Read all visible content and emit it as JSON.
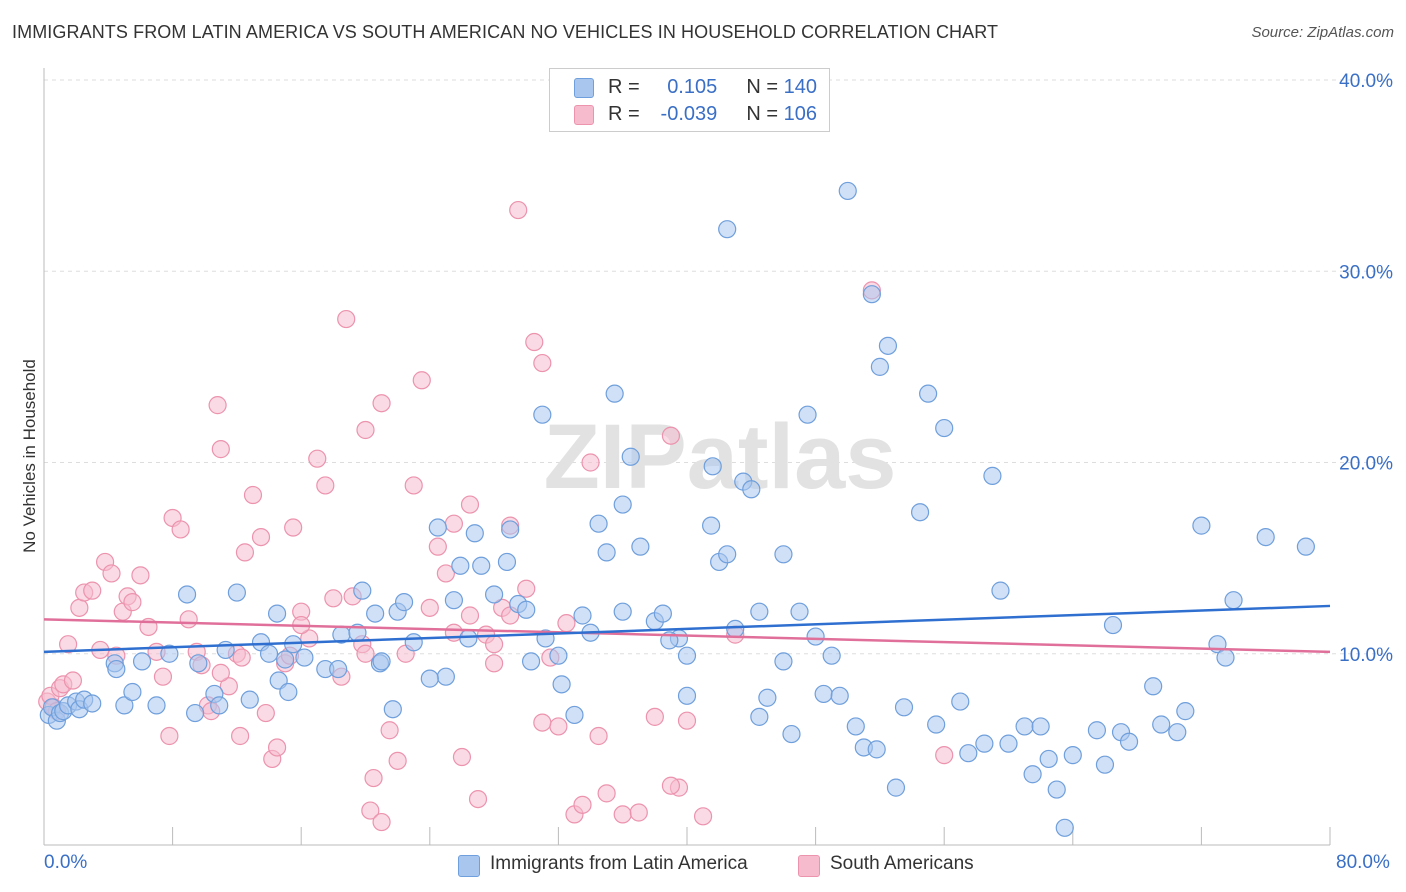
{
  "title": "IMMIGRANTS FROM LATIN AMERICA VS SOUTH AMERICAN NO VEHICLES IN HOUSEHOLD CORRELATION CHART",
  "source": "Source: ZipAtlas.com",
  "watermark": "ZIPatlas",
  "legend_top": {
    "series1": {
      "r_label": "R =",
      "r_value": "0.105",
      "n_label": "N =",
      "n_value": "140"
    },
    "series2": {
      "r_label": "R =",
      "r_value": "-0.039",
      "n_label": "N =",
      "n_value": "106"
    }
  },
  "legend_bottom": {
    "series1": "Immigrants from Latin America",
    "series2": "South Americans"
  },
  "colors": {
    "blue_fill": "#a9c6ee",
    "blue_stroke": "#6f9fdc",
    "blue_line": "#2f6fd0",
    "pink_fill": "#f6bccd",
    "pink_stroke": "#ec93ae",
    "pink_line": "#e0709a",
    "axis_label": "#3a6fc6",
    "grid": "#dddddd"
  },
  "chart_data": {
    "type": "scatter",
    "title": "IMMIGRANTS FROM LATIN AMERICA VS SOUTH AMERICAN NO VEHICLES IN HOUSEHOLD CORRELATION CHART",
    "xlabel": "",
    "ylabel": "No Vehicles in Household",
    "xlim": [
      0,
      80
    ],
    "ylim": [
      0,
      40
    ],
    "x_tick_labels": [
      "0.0%",
      "80.0%"
    ],
    "y_tick_labels": [
      "10.0%",
      "20.0%",
      "30.0%",
      "40.0%"
    ],
    "y_ticks": [
      10,
      20,
      30,
      40
    ],
    "grid": "horizontal dashed",
    "series": [
      {
        "name": "Immigrants from Latin America",
        "color": "blue",
        "trend": {
          "x": [
            0,
            80
          ],
          "y": [
            10.1,
            12.5
          ]
        },
        "points": [
          [
            0.3,
            6.8
          ],
          [
            0.5,
            7.2
          ],
          [
            0.8,
            6.5
          ],
          [
            1.0,
            6.9
          ],
          [
            1.2,
            7.0
          ],
          [
            1.5,
            7.3
          ],
          [
            2.0,
            7.5
          ],
          [
            2.2,
            7.1
          ],
          [
            2.5,
            7.6
          ],
          [
            3.0,
            7.4
          ],
          [
            4.4,
            9.5
          ],
          [
            4.5,
            9.2
          ],
          [
            5.0,
            7.3
          ],
          [
            5.5,
            8.0
          ],
          [
            6.1,
            9.6
          ],
          [
            7.0,
            7.3
          ],
          [
            7.8,
            10.0
          ],
          [
            8.9,
            13.1
          ],
          [
            9.4,
            6.9
          ],
          [
            9.6,
            9.5
          ],
          [
            10.6,
            7.9
          ],
          [
            10.9,
            7.3
          ],
          [
            11.3,
            10.2
          ],
          [
            12.0,
            13.2
          ],
          [
            13.5,
            10.6
          ],
          [
            14.0,
            10.0
          ],
          [
            14.6,
            8.6
          ],
          [
            15.0,
            9.7
          ],
          [
            15.2,
            8.0
          ],
          [
            15.5,
            10.5
          ],
          [
            16.2,
            9.8
          ],
          [
            17.5,
            9.2
          ],
          [
            18.3,
            9.2
          ],
          [
            18.5,
            11.0
          ],
          [
            19.5,
            11.1
          ],
          [
            20.6,
            12.1
          ],
          [
            20.9,
            9.5
          ],
          [
            21.0,
            9.6
          ],
          [
            21.7,
            7.1
          ],
          [
            22.0,
            12.2
          ],
          [
            23.0,
            10.6
          ],
          [
            24.5,
            16.6
          ],
          [
            25.0,
            8.8
          ],
          [
            25.5,
            12.8
          ],
          [
            26.4,
            10.8
          ],
          [
            26.8,
            16.3
          ],
          [
            27.2,
            14.6
          ],
          [
            28.0,
            13.1
          ],
          [
            28.8,
            14.8
          ],
          [
            29.5,
            12.6
          ],
          [
            30.3,
            9.6
          ],
          [
            31.0,
            22.5
          ],
          [
            31.2,
            10.8
          ],
          [
            32.0,
            9.9
          ],
          [
            32.2,
            8.4
          ],
          [
            33.5,
            12.0
          ],
          [
            34.0,
            11.1
          ],
          [
            34.5,
            16.8
          ],
          [
            35.5,
            23.6
          ],
          [
            35.0,
            15.3
          ],
          [
            36.0,
            17.8
          ],
          [
            36.5,
            20.3
          ],
          [
            37.1,
            15.6
          ],
          [
            38.0,
            11.7
          ],
          [
            38.5,
            12.1
          ],
          [
            39.5,
            10.8
          ],
          [
            40.0,
            7.8
          ],
          [
            41.5,
            16.7
          ],
          [
            41.6,
            19.8
          ],
          [
            42.0,
            14.8
          ],
          [
            42.5,
            15.2
          ],
          [
            43.0,
            11.3
          ],
          [
            43.5,
            19.0
          ],
          [
            44.0,
            18.6
          ],
          [
            44.5,
            6.7
          ],
          [
            45.0,
            7.7
          ],
          [
            46.0,
            15.2
          ],
          [
            46.5,
            5.8
          ],
          [
            47.0,
            12.2
          ],
          [
            47.5,
            22.5
          ],
          [
            48.0,
            10.9
          ],
          [
            48.5,
            7.9
          ],
          [
            49.0,
            9.9
          ],
          [
            49.5,
            7.8
          ],
          [
            50.0,
            34.2
          ],
          [
            50.5,
            6.2
          ],
          [
            51.0,
            5.1
          ],
          [
            51.5,
            28.8
          ],
          [
            51.8,
            5.0
          ],
          [
            52.0,
            25.0
          ],
          [
            52.5,
            26.1
          ],
          [
            53.0,
            3.0
          ],
          [
            53.5,
            7.2
          ],
          [
            54.5,
            17.4
          ],
          [
            55.0,
            23.6
          ],
          [
            56.0,
            21.8
          ],
          [
            55.5,
            6.3
          ],
          [
            57.0,
            7.5
          ],
          [
            57.5,
            4.8
          ],
          [
            58.5,
            5.3
          ],
          [
            59.0,
            19.3
          ],
          [
            59.5,
            13.3
          ],
          [
            60.0,
            5.3
          ],
          [
            61.0,
            6.2
          ],
          [
            61.5,
            3.7
          ],
          [
            62.0,
            6.2
          ],
          [
            62.5,
            4.5
          ],
          [
            63.0,
            2.9
          ],
          [
            63.5,
            0.9
          ],
          [
            64.0,
            4.7
          ],
          [
            65.5,
            6.0
          ],
          [
            66.0,
            4.2
          ],
          [
            66.5,
            11.5
          ],
          [
            67.0,
            5.9
          ],
          [
            67.5,
            5.4
          ],
          [
            69.0,
            8.3
          ],
          [
            69.5,
            6.3
          ],
          [
            70.5,
            5.9
          ],
          [
            71.0,
            7.0
          ],
          [
            72.0,
            16.7
          ],
          [
            73.0,
            10.5
          ],
          [
            73.5,
            9.8
          ],
          [
            74.0,
            12.8
          ],
          [
            76.0,
            16.1
          ],
          [
            78.5,
            15.6
          ],
          [
            44.5,
            12.2
          ],
          [
            42.5,
            32.2
          ],
          [
            36.0,
            12.2
          ],
          [
            40.0,
            9.9
          ],
          [
            38.9,
            10.7
          ],
          [
            29.0,
            16.5
          ],
          [
            25.9,
            14.6
          ],
          [
            22.4,
            12.7
          ],
          [
            14.5,
            12.1
          ],
          [
            12.8,
            7.6
          ],
          [
            19.8,
            13.3
          ],
          [
            46.0,
            9.6
          ],
          [
            30.0,
            12.3
          ],
          [
            33.0,
            6.8
          ],
          [
            24.0,
            8.7
          ]
        ]
      },
      {
        "name": "South Americans",
        "color": "pink",
        "trend": {
          "x": [
            0,
            80
          ],
          "y": [
            11.8,
            10.1
          ]
        },
        "points": [
          [
            0.2,
            7.5
          ],
          [
            0.4,
            7.8
          ],
          [
            0.6,
            7.2
          ],
          [
            0.8,
            7.0
          ],
          [
            1.0,
            8.2
          ],
          [
            1.2,
            8.4
          ],
          [
            1.5,
            10.5
          ],
          [
            1.8,
            8.6
          ],
          [
            2.2,
            12.4
          ],
          [
            2.5,
            13.2
          ],
          [
            3.0,
            13.3
          ],
          [
            3.5,
            10.2
          ],
          [
            3.8,
            14.8
          ],
          [
            4.2,
            14.2
          ],
          [
            4.5,
            9.9
          ],
          [
            4.9,
            12.2
          ],
          [
            5.2,
            13.0
          ],
          [
            5.5,
            12.7
          ],
          [
            6.0,
            14.1
          ],
          [
            6.5,
            11.4
          ],
          [
            7.0,
            10.1
          ],
          [
            7.4,
            8.8
          ],
          [
            7.8,
            5.7
          ],
          [
            8.0,
            17.1
          ],
          [
            8.5,
            16.5
          ],
          [
            9.0,
            11.8
          ],
          [
            9.5,
            10.1
          ],
          [
            9.8,
            9.4
          ],
          [
            10.2,
            7.3
          ],
          [
            10.8,
            23.0
          ],
          [
            11.0,
            20.7
          ],
          [
            11.5,
            8.3
          ],
          [
            12.0,
            10.0
          ],
          [
            12.2,
            5.7
          ],
          [
            12.5,
            15.3
          ],
          [
            13.0,
            18.3
          ],
          [
            13.5,
            16.1
          ],
          [
            13.8,
            6.9
          ],
          [
            14.2,
            4.5
          ],
          [
            14.5,
            5.1
          ],
          [
            15.0,
            9.5
          ],
          [
            15.5,
            16.6
          ],
          [
            16.0,
            12.2
          ],
          [
            16.5,
            10.8
          ],
          [
            17.0,
            20.2
          ],
          [
            17.5,
            18.8
          ],
          [
            18.0,
            12.9
          ],
          [
            18.5,
            8.8
          ],
          [
            18.8,
            27.5
          ],
          [
            19.2,
            13.0
          ],
          [
            19.8,
            10.5
          ],
          [
            20.0,
            21.7
          ],
          [
            20.5,
            3.5
          ],
          [
            21.0,
            23.1
          ],
          [
            21.5,
            6.0
          ],
          [
            22.0,
            4.4
          ],
          [
            22.5,
            10.0
          ],
          [
            23.0,
            18.8
          ],
          [
            23.5,
            24.3
          ],
          [
            24.0,
            12.4
          ],
          [
            24.5,
            15.6
          ],
          [
            25.0,
            14.2
          ],
          [
            25.5,
            16.8
          ],
          [
            26.0,
            4.6
          ],
          [
            26.5,
            17.8
          ],
          [
            27.0,
            2.4
          ],
          [
            27.5,
            11.0
          ],
          [
            28.0,
            9.5
          ],
          [
            28.5,
            12.4
          ],
          [
            29.0,
            16.7
          ],
          [
            29.5,
            33.2
          ],
          [
            30.0,
            13.4
          ],
          [
            30.5,
            26.3
          ],
          [
            31.0,
            25.2
          ],
          [
            31.5,
            9.8
          ],
          [
            32.0,
            6.2
          ],
          [
            32.5,
            11.6
          ],
          [
            33.0,
            1.6
          ],
          [
            33.5,
            2.1
          ],
          [
            34.0,
            20.0
          ],
          [
            34.5,
            5.7
          ],
          [
            35.0,
            2.7
          ],
          [
            36.0,
            1.6
          ],
          [
            37.0,
            1.7
          ],
          [
            38.0,
            6.7
          ],
          [
            39.0,
            21.4
          ],
          [
            39.5,
            3.0
          ],
          [
            40.0,
            6.5
          ],
          [
            41.0,
            1.5
          ],
          [
            43.0,
            11.0
          ],
          [
            51.5,
            29.0
          ],
          [
            56.0,
            4.7
          ],
          [
            10.4,
            7.0
          ],
          [
            20.3,
            1.8
          ],
          [
            21.0,
            1.2
          ],
          [
            15.3,
            9.9
          ],
          [
            31.0,
            6.4
          ],
          [
            25.5,
            11.1
          ],
          [
            20.0,
            10.0
          ],
          [
            16.0,
            11.5
          ],
          [
            12.3,
            9.8
          ],
          [
            39.0,
            3.1
          ],
          [
            26.5,
            12.0
          ],
          [
            29.0,
            12.0
          ],
          [
            28.0,
            10.5
          ],
          [
            11.0,
            9.0
          ]
        ]
      }
    ]
  }
}
